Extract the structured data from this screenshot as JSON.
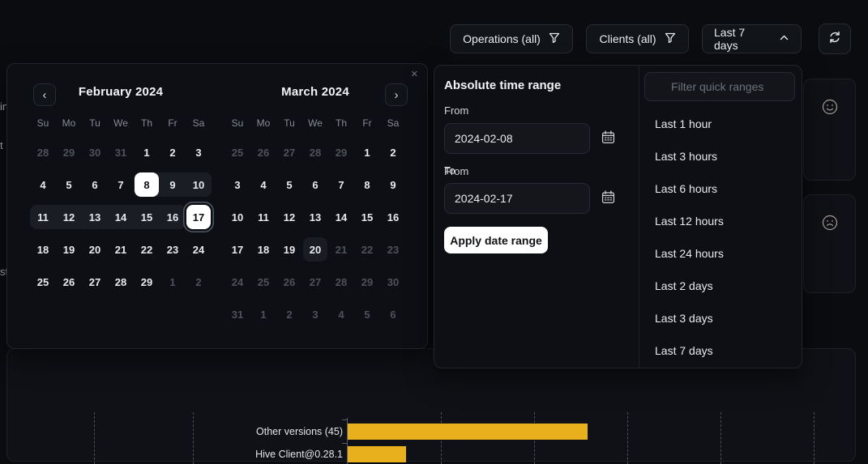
{
  "colors": {
    "accent_bar": "#e8b01c",
    "selection_pill": "#ffffff",
    "panel_bg": "#0d0f14",
    "page_bg": "#0a0c10"
  },
  "toolbar": {
    "operations_label": "Operations (all)",
    "clients_label": "Clients (all)",
    "range_label": "Last 7 days",
    "refresh_icon": "refresh-icon",
    "filter_icon": "filter-funnel-icon",
    "chevron_icon": "chevron-up-icon"
  },
  "background": {
    "left_edge_fragments": [
      "in",
      "t",
      "st"
    ],
    "stat_cards": [
      {
        "icon": "smiley-face"
      },
      {
        "icon": "frown-face"
      }
    ]
  },
  "calendar": {
    "close_glyph": "✕",
    "prev_glyph": "‹",
    "next_glyph": "›",
    "months": [
      {
        "title": "February 2024",
        "weekdays": [
          "Su",
          "Mo",
          "Tu",
          "We",
          "Th",
          "Fr",
          "Sa"
        ],
        "weeks": [
          [
            {
              "d": 28,
              "s": "out"
            },
            {
              "d": 29,
              "s": "out"
            },
            {
              "d": 30,
              "s": "out"
            },
            {
              "d": 31,
              "s": "out"
            },
            {
              "d": 1,
              "s": "on"
            },
            {
              "d": 2,
              "s": "on"
            },
            {
              "d": 3,
              "s": "on"
            }
          ],
          [
            {
              "d": 4,
              "s": "on"
            },
            {
              "d": 5,
              "s": "on"
            },
            {
              "d": 6,
              "s": "on"
            },
            {
              "d": 7,
              "s": "on"
            },
            {
              "d": 8,
              "s": "start"
            },
            {
              "d": 9,
              "s": "range"
            },
            {
              "d": 10,
              "s": "range"
            }
          ],
          [
            {
              "d": 11,
              "s": "range"
            },
            {
              "d": 12,
              "s": "range"
            },
            {
              "d": 13,
              "s": "range"
            },
            {
              "d": 14,
              "s": "range"
            },
            {
              "d": 15,
              "s": "range"
            },
            {
              "d": 16,
              "s": "range"
            },
            {
              "d": 17,
              "s": "end"
            }
          ],
          [
            {
              "d": 18,
              "s": "on"
            },
            {
              "d": 19,
              "s": "on"
            },
            {
              "d": 20,
              "s": "on"
            },
            {
              "d": 21,
              "s": "on"
            },
            {
              "d": 22,
              "s": "on"
            },
            {
              "d": 23,
              "s": "on"
            },
            {
              "d": 24,
              "s": "on"
            }
          ],
          [
            {
              "d": 25,
              "s": "on"
            },
            {
              "d": 26,
              "s": "on"
            },
            {
              "d": 27,
              "s": "on"
            },
            {
              "d": 28,
              "s": "on"
            },
            {
              "d": 29,
              "s": "on"
            },
            {
              "d": 1,
              "s": "out"
            },
            {
              "d": 2,
              "s": "out"
            }
          ]
        ]
      },
      {
        "title": "March 2024",
        "weekdays": [
          "Su",
          "Mo",
          "Tu",
          "We",
          "Th",
          "Fr",
          "Sa"
        ],
        "weeks": [
          [
            {
              "d": 25,
              "s": "out"
            },
            {
              "d": 26,
              "s": "out"
            },
            {
              "d": 27,
              "s": "out"
            },
            {
              "d": 28,
              "s": "out"
            },
            {
              "d": 29,
              "s": "out"
            },
            {
              "d": 1,
              "s": "on"
            },
            {
              "d": 2,
              "s": "on"
            }
          ],
          [
            {
              "d": 3,
              "s": "on"
            },
            {
              "d": 4,
              "s": "on"
            },
            {
              "d": 5,
              "s": "on"
            },
            {
              "d": 6,
              "s": "on"
            },
            {
              "d": 7,
              "s": "on"
            },
            {
              "d": 8,
              "s": "on"
            },
            {
              "d": 9,
              "s": "on"
            }
          ],
          [
            {
              "d": 10,
              "s": "on"
            },
            {
              "d": 11,
              "s": "on"
            },
            {
              "d": 12,
              "s": "on"
            },
            {
              "d": 13,
              "s": "on"
            },
            {
              "d": 14,
              "s": "on"
            },
            {
              "d": 15,
              "s": "on"
            },
            {
              "d": 16,
              "s": "on"
            }
          ],
          [
            {
              "d": 17,
              "s": "on"
            },
            {
              "d": 18,
              "s": "on"
            },
            {
              "d": 19,
              "s": "on"
            },
            {
              "d": 20,
              "s": "today"
            },
            {
              "d": 21,
              "s": "off"
            },
            {
              "d": 22,
              "s": "off"
            },
            {
              "d": 23,
              "s": "off"
            }
          ],
          [
            {
              "d": 24,
              "s": "off"
            },
            {
              "d": 25,
              "s": "off"
            },
            {
              "d": 26,
              "s": "off"
            },
            {
              "d": 27,
              "s": "off"
            },
            {
              "d": 28,
              "s": "off"
            },
            {
              "d": 29,
              "s": "off"
            },
            {
              "d": 30,
              "s": "off"
            }
          ],
          [
            {
              "d": 31,
              "s": "off"
            },
            {
              "d": 1,
              "s": "out"
            },
            {
              "d": 2,
              "s": "out"
            },
            {
              "d": 3,
              "s": "out"
            },
            {
              "d": 4,
              "s": "out"
            },
            {
              "d": 5,
              "s": "out"
            },
            {
              "d": 6,
              "s": "out"
            }
          ]
        ]
      }
    ]
  },
  "time_panel": {
    "title": "Absolute time range",
    "from_label": "From",
    "from_value": "2024-02-08",
    "to_label": "To",
    "to_value": "2024-02-17",
    "apply_label": "Apply date range"
  },
  "quick_ranges": {
    "placeholder": "Filter quick ranges",
    "items": [
      "Last 1 hour",
      "Last 3 hours",
      "Last 6 hours",
      "Last 12 hours",
      "Last 24 hours",
      "Last 2 days",
      "Last 3 days",
      "Last 7 days"
    ]
  },
  "chart_data": {
    "type": "bar",
    "orientation": "horizontal",
    "categories": [
      "Other versions (45)",
      "Hive Client@0.28.1"
    ],
    "values": [
      45,
      11
    ],
    "bar_color": "#e8b01c",
    "grid": "dashed-vertical",
    "legend": "none",
    "title": ""
  }
}
